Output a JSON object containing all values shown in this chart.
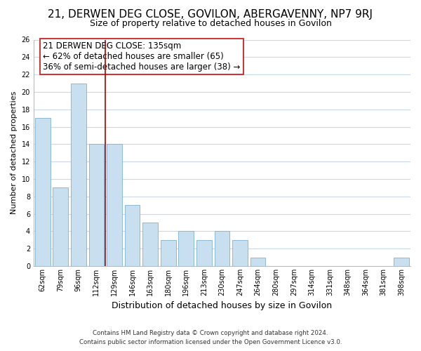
{
  "title": "21, DERWEN DEG CLOSE, GOVILON, ABERGAVENNY, NP7 9RJ",
  "subtitle": "Size of property relative to detached houses in Govilon",
  "xlabel": "Distribution of detached houses by size in Govilon",
  "ylabel": "Number of detached properties",
  "categories": [
    "62sqm",
    "79sqm",
    "96sqm",
    "112sqm",
    "129sqm",
    "146sqm",
    "163sqm",
    "180sqm",
    "196sqm",
    "213sqm",
    "230sqm",
    "247sqm",
    "264sqm",
    "280sqm",
    "297sqm",
    "314sqm",
    "331sqm",
    "348sqm",
    "364sqm",
    "381sqm",
    "398sqm"
  ],
  "values": [
    17,
    9,
    21,
    14,
    14,
    7,
    5,
    3,
    4,
    3,
    4,
    3,
    1,
    0,
    0,
    0,
    0,
    0,
    0,
    0,
    1
  ],
  "bar_color": "#c8dff0",
  "bar_edge_color": "#7fb0d0",
  "vline_color": "#aa0000",
  "annotation_box_text": "21 DERWEN DEG CLOSE: 135sqm\n← 62% of detached houses are smaller (65)\n36% of semi-detached houses are larger (38) →",
  "annotation_fontsize": 8.5,
  "ylim": [
    0,
    26
  ],
  "yticks": [
    0,
    2,
    4,
    6,
    8,
    10,
    12,
    14,
    16,
    18,
    20,
    22,
    24,
    26
  ],
  "footer_line1": "Contains HM Land Registry data © Crown copyright and database right 2024.",
  "footer_line2": "Contains public sector information licensed under the Open Government Licence v3.0.",
  "background_color": "#ffffff",
  "grid_color": "#c8d8e8",
  "title_fontsize": 11,
  "subtitle_fontsize": 9,
  "xlabel_fontsize": 9,
  "ylabel_fontsize": 8,
  "vline_x_index": 3,
  "vline_x_offset": 0.5
}
